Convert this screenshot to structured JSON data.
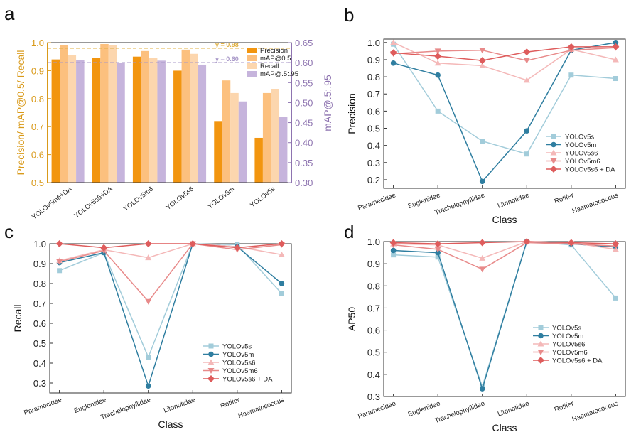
{
  "figure": {
    "panel_labels": [
      "a",
      "b",
      "c",
      "d"
    ]
  },
  "colors": {
    "precision": "#F2950F",
    "map05": "#FCC07E",
    "recall": "#FCD6AE",
    "map5095": "#C6B4DC",
    "left_axis": "#D99A1A",
    "right_axis": "#8E74B0",
    "ref_line": "#E0B040",
    "ref_line2": "#A898C8",
    "YOLOv5s": "#A2CCDA",
    "YOLOv5m": "#2F7EA0",
    "YOLOv5s6": "#F4B8B8",
    "YOLOv5m6": "#E88A8A",
    "YOLOv5s6_DA": "#DE5C5C"
  },
  "chart_data": [
    {
      "panel": "a",
      "type": "bar",
      "categories": [
        "YOLOv5m6+DA",
        "YOLOv5s6+DA",
        "YOLOv5m6",
        "YOLOv5s6",
        "YOLOv5m",
        "YOLOv5s"
      ],
      "series": [
        {
          "name": "Precision",
          "axis": "left",
          "values": [
            0.94,
            0.945,
            0.95,
            0.9,
            0.72,
            0.66
          ]
        },
        {
          "name": "mAP@0.5",
          "axis": "left",
          "values": [
            0.99,
            0.995,
            0.97,
            0.975,
            0.865,
            0.82
          ]
        },
        {
          "name": "Recall",
          "axis": "left",
          "values": [
            0.955,
            0.99,
            0.945,
            0.96,
            0.82,
            0.835
          ]
        },
        {
          "name": "mAP@.5:.95",
          "axis": "right",
          "values": [
            0.607,
            0.6,
            0.605,
            0.595,
            0.503,
            0.465
          ]
        }
      ],
      "ylabel": "Precision/ mAP@0.5/ Recall",
      "ylabel_right": "mAP@.5:.95",
      "ylim": [
        0.5,
        1.0
      ],
      "ylim_right": [
        0.3,
        0.65
      ],
      "yticks": [
        "0.5",
        "0.6",
        "0.7",
        "0.8",
        "0.9",
        "1.0"
      ],
      "yticks_right": [
        "0.30",
        "0.35",
        "0.40",
        "0.45",
        "0.50",
        "0.55",
        "0.60",
        "0.65"
      ],
      "reference_lines": [
        {
          "label": "y = 0.98",
          "axis": "left",
          "value": 0.98
        },
        {
          "label": "y = 0.60",
          "axis": "right",
          "value": 0.6
        }
      ],
      "legend_position": "top-right"
    },
    {
      "panel": "b",
      "type": "line",
      "categories": [
        "Paramecidae",
        "Euglenidae",
        "Trachelophyllidae",
        "Litonotidae",
        "Rotifer",
        "Haematococcus"
      ],
      "xlabel": "Class",
      "ylabel": "Precision",
      "ylim": [
        0.15,
        1.02
      ],
      "yticks": [
        "0.2",
        "0.3",
        "0.4",
        "0.5",
        "0.6",
        "0.7",
        "0.8",
        "0.9",
        "1.0"
      ],
      "series": [
        {
          "name": "YOLOv5s",
          "values": [
            0.99,
            0.6,
            0.425,
            0.35,
            0.81,
            0.79
          ]
        },
        {
          "name": "YOLOv5m",
          "values": [
            0.88,
            0.81,
            0.19,
            0.485,
            0.955,
            1.0
          ]
        },
        {
          "name": "YOLOv5s6",
          "values": [
            1.0,
            0.88,
            0.865,
            0.78,
            0.96,
            0.9
          ]
        },
        {
          "name": "YOLOv5m6",
          "values": [
            0.935,
            0.95,
            0.955,
            0.895,
            0.955,
            0.97
          ]
        },
        {
          "name": "YOLOv5s6 + DA",
          "values": [
            0.94,
            0.92,
            0.895,
            0.945,
            0.975,
            0.975
          ]
        }
      ],
      "legend_position": "lower-right"
    },
    {
      "panel": "c",
      "type": "line",
      "categories": [
        "Paramecidae",
        "Euglenidae",
        "Trachelophyllidae",
        "Litonotidae",
        "Rotifer",
        "Haematococcus"
      ],
      "xlabel": "Class",
      "ylabel": "Recall",
      "ylim": [
        0.25,
        1.0
      ],
      "yticks": [
        "0.3",
        "0.4",
        "0.5",
        "0.6",
        "0.7",
        "0.8",
        "0.9",
        "1.0"
      ],
      "series": [
        {
          "name": "YOLOv5s",
          "values": [
            0.865,
            0.955,
            0.43,
            1.0,
            0.995,
            0.75
          ]
        },
        {
          "name": "YOLOv5m",
          "values": [
            0.905,
            0.955,
            0.285,
            1.0,
            0.985,
            0.8
          ]
        },
        {
          "name": "YOLOv5s6",
          "values": [
            0.915,
            0.97,
            0.93,
            1.0,
            0.985,
            0.945
          ]
        },
        {
          "name": "YOLOv5m6",
          "values": [
            0.91,
            0.965,
            0.71,
            1.0,
            0.97,
            0.995
          ]
        },
        {
          "name": "YOLOv5s6 + DA",
          "values": [
            1.0,
            0.98,
            1.0,
            1.0,
            0.98,
            1.0
          ]
        }
      ],
      "legend_position": "lower-right"
    },
    {
      "panel": "d",
      "type": "line",
      "categories": [
        "Paramecidae",
        "Euglenidae",
        "Trachelophyllidae",
        "Litonotidae",
        "Rotifer",
        "Haematococcus"
      ],
      "xlabel": "Class",
      "ylabel": "AP50",
      "ylim": [
        0.3,
        1.0
      ],
      "yticks": [
        "0.3",
        "0.4",
        "0.5",
        "0.6",
        "0.7",
        "0.8",
        "0.9",
        "1.0"
      ],
      "series": [
        {
          "name": "YOLOv5s",
          "values": [
            0.94,
            0.93,
            0.345,
            1.0,
            0.985,
            0.745
          ]
        },
        {
          "name": "YOLOv5m",
          "values": [
            0.96,
            0.95,
            0.335,
            1.0,
            0.99,
            0.975
          ]
        },
        {
          "name": "YOLOv5s6",
          "values": [
            0.99,
            0.985,
            0.925,
            1.0,
            0.995,
            0.965
          ]
        },
        {
          "name": "YOLOv5m6",
          "values": [
            0.985,
            0.965,
            0.875,
            0.995,
            0.99,
            0.98
          ]
        },
        {
          "name": "YOLOv5s6 + DA",
          "values": [
            0.995,
            0.99,
            0.995,
            1.0,
            0.995,
            0.99
          ]
        }
      ],
      "legend_position": "middle-right"
    }
  ]
}
